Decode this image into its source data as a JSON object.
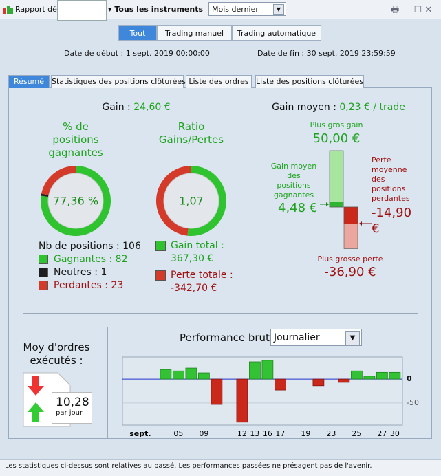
{
  "toolbar": {
    "report": "Rapport déta",
    "instruments": "Tous les instruments",
    "period": "Mois dernier"
  },
  "filters": [
    "Tout",
    "Trading manuel",
    "Trading automatique"
  ],
  "dates": {
    "start": "Date de début : 1 sept. 2019 00:00:00",
    "end": "Date de fin : 30 sept. 2019 23:59:59"
  },
  "tabs": [
    "Résumé",
    "Statistiques des positions clôturées",
    "Liste des ordres",
    "Liste des positions clôturées"
  ],
  "summary": {
    "gain": {
      "label": "Gain :",
      "value_label": "24,60 €"
    },
    "win_pct": {
      "title": "% de positions gagnantes",
      "center_label": "77,36 %"
    },
    "ratio": {
      "title": "Ratio Gains/Pertes",
      "center_label": "1,07"
    },
    "positions": {
      "label": "Nb de positions :",
      "value": 106
    },
    "counts": [
      {
        "label": "Gagnantes :",
        "value": 82,
        "color": "#2fc42f"
      },
      {
        "label": "Neutres :",
        "value": 1,
        "color": "#1e1e1e"
      },
      {
        "label": "Perdantes :",
        "value": 23,
        "color": "#d43a2a"
      }
    ],
    "totals": [
      {
        "label": "Gain total :",
        "value": 367.3,
        "value_label": "367,30 €",
        "color": "#2fc42f"
      },
      {
        "label": "Perte totale :",
        "value": -342.7,
        "value_label": "-342,70 €",
        "color": "#d43a2a"
      }
    ],
    "avg": {
      "label": "Gain moyen :",
      "value_label": "0,23 € / trade",
      "max_gain": {
        "label": "Plus gros gain",
        "value": 50,
        "value_label": "50,00 €"
      },
      "avg_gain": {
        "label": "Gain moyen des positions gagnantes",
        "value": 4.48,
        "value_label": "4,48 €"
      },
      "avg_loss": {
        "label": "Perte moyenne des positions perdantes",
        "value": -14.9,
        "value_label": "-14,90 €"
      },
      "max_loss": {
        "label": "Plus grosse perte",
        "value": -36.9,
        "value_label": "-36,90 €"
      }
    }
  },
  "orders": {
    "label": "Moy d'ordres exécutés :",
    "value_label": "10,28",
    "unit": "par jour"
  },
  "performance": {
    "title": "Performance brute",
    "period": "Journalier"
  },
  "chart_data": {
    "type": "bar",
    "categories": [
      "sept.",
      null,
      null,
      "05",
      null,
      "09",
      null,
      null,
      "12",
      "13",
      "16",
      "17",
      null,
      "19",
      null,
      "23",
      null,
      "25",
      null,
      "27",
      "30"
    ],
    "values": [
      null,
      null,
      20,
      17,
      23,
      13,
      -53,
      null,
      -90,
      36,
      39,
      -23,
      null,
      null,
      -14,
      null,
      -7,
      17,
      6,
      14,
      14
    ],
    "positive_color": "#33c233",
    "negative_color": "#c9281a",
    "ylim": [
      -96,
      46
    ],
    "yticks": [
      0,
      -50
    ],
    "grid": true
  },
  "footer": "Les statistiques ci-dessus sont relatives au passé. Les performances passées ne présagent pas de l'avenir."
}
